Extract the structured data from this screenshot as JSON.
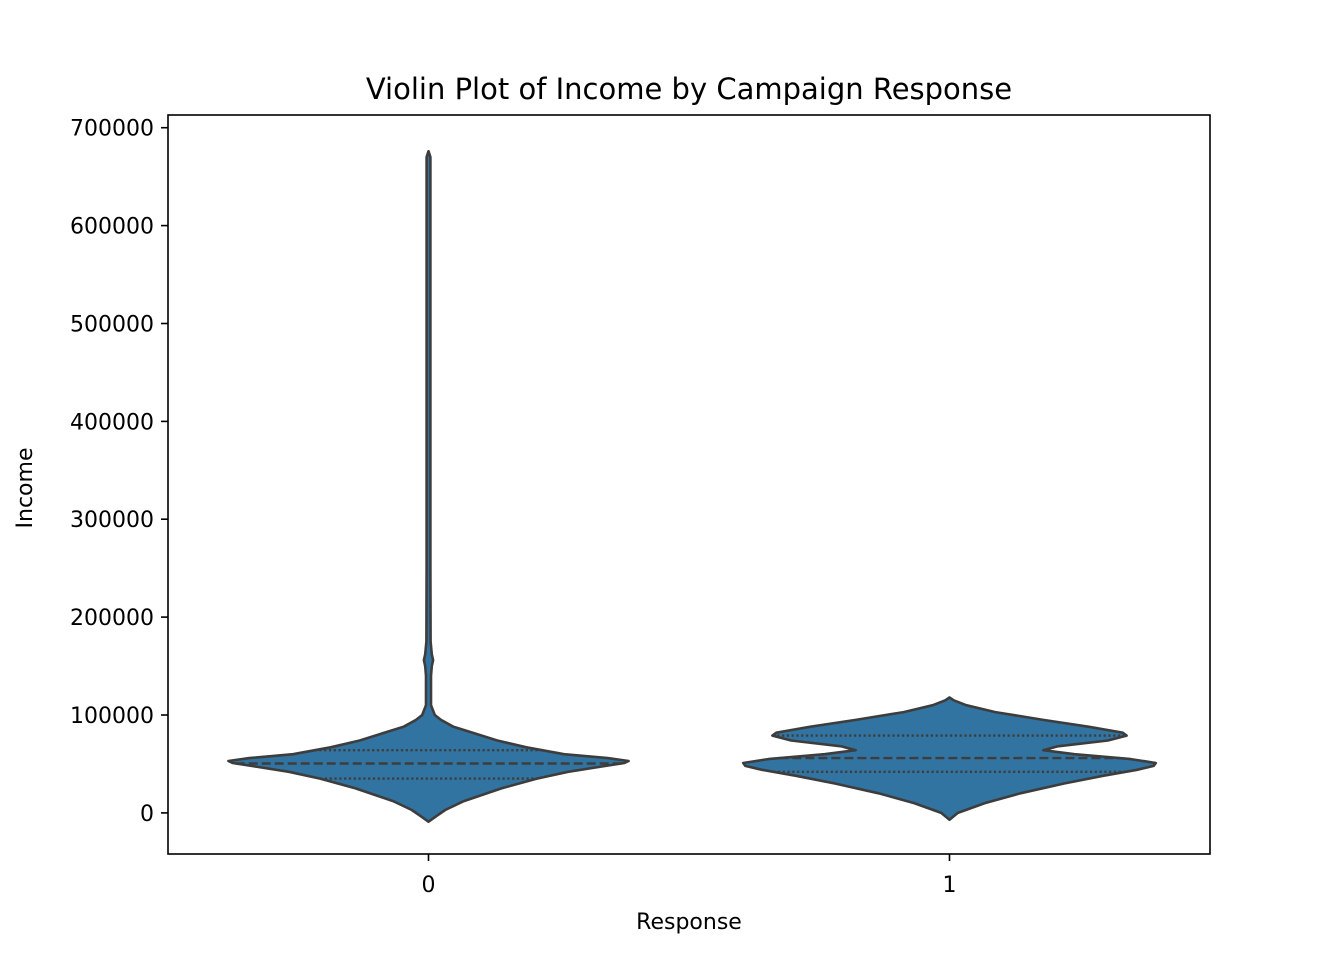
{
  "chart_data": {
    "type": "violin",
    "title": "Violin Plot of Income by Campaign Response",
    "xlabel": "Response",
    "ylabel": "Income",
    "categories": [
      "0",
      "1"
    ],
    "ylim": [
      -42000,
      713000
    ],
    "yticks": [
      0,
      100000,
      200000,
      300000,
      400000,
      500000,
      600000,
      700000
    ],
    "ytick_labels": [
      "0",
      "100000",
      "200000",
      "300000",
      "400000",
      "500000",
      "600000",
      "700000"
    ],
    "grid": false,
    "legend": "none",
    "inner": "quartile",
    "colors": {
      "fill": "#3274a1",
      "edge": "#3d3d3d"
    },
    "violins": [
      {
        "category": "0",
        "quartiles": [
          35000,
          50500,
          64000
        ],
        "density": [
          [
            -9000,
            0.0
          ],
          [
            -3000,
            0.04
          ],
          [
            3000,
            0.08
          ],
          [
            12000,
            0.17
          ],
          [
            25000,
            0.35
          ],
          [
            35000,
            0.52
          ],
          [
            42000,
            0.67
          ],
          [
            47000,
            0.82
          ],
          [
            51000,
            0.94
          ],
          [
            53000,
            0.96
          ],
          [
            56000,
            0.86
          ],
          [
            60000,
            0.65
          ],
          [
            67000,
            0.47
          ],
          [
            74000,
            0.33
          ],
          [
            82000,
            0.21
          ],
          [
            88000,
            0.12
          ],
          [
            95000,
            0.06
          ],
          [
            100000,
            0.03
          ],
          [
            110000,
            0.012
          ],
          [
            140000,
            0.012
          ],
          [
            150000,
            0.016
          ],
          [
            156000,
            0.022
          ],
          [
            162000,
            0.016
          ],
          [
            175000,
            0.01
          ],
          [
            250000,
            0.009
          ],
          [
            500000,
            0.009
          ],
          [
            670000,
            0.009
          ],
          [
            676000,
            0.0
          ]
        ]
      },
      {
        "category": "1",
        "quartiles": [
          42000,
          56000,
          79000
        ],
        "density": [
          [
            -7000,
            0.0
          ],
          [
            0,
            0.04
          ],
          [
            10000,
            0.17
          ],
          [
            20000,
            0.34
          ],
          [
            30000,
            0.55
          ],
          [
            38000,
            0.74
          ],
          [
            44000,
            0.9
          ],
          [
            48000,
            0.98
          ],
          [
            51000,
            0.99
          ],
          [
            55000,
            0.87
          ],
          [
            60000,
            0.6
          ],
          [
            64000,
            0.45
          ],
          [
            68000,
            0.52
          ],
          [
            74000,
            0.76
          ],
          [
            79000,
            0.85
          ],
          [
            82000,
            0.83
          ],
          [
            88000,
            0.67
          ],
          [
            95000,
            0.45
          ],
          [
            103000,
            0.22
          ],
          [
            110000,
            0.08
          ],
          [
            115000,
            0.02
          ],
          [
            118000,
            0.0
          ]
        ]
      }
    ]
  }
}
